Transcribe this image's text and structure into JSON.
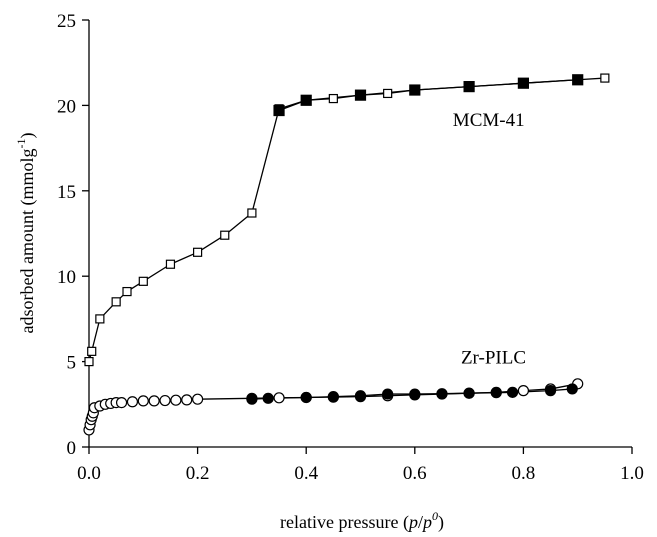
{
  "chart_data": {
    "type": "line",
    "title": "",
    "xlabel": {
      "prefix": "relative pressure (",
      "var": "p",
      "slash": "/",
      "var2": "p",
      "sup": "0",
      "suffix": ")"
    },
    "ylabel": {
      "prefix": "adsorbed amount (mmolg",
      "sup": "-1",
      "suffix": ")"
    },
    "xlim": [
      0,
      1.0
    ],
    "ylim": [
      0,
      25
    ],
    "xticks": [
      "0.0",
      "0.2",
      "0.4",
      "0.6",
      "0.8",
      "1.0"
    ],
    "yticks": [
      "0",
      "5",
      "10",
      "15",
      "20",
      "25"
    ],
    "grid": false,
    "series": [
      {
        "name": "MCM-41",
        "branch": "adsorption",
        "marker": "square-open",
        "x": [
          0.0,
          0.005,
          0.02,
          0.05,
          0.07,
          0.1,
          0.15,
          0.2,
          0.25,
          0.3,
          0.35,
          0.4,
          0.45,
          0.5,
          0.55,
          0.6,
          0.7,
          0.8,
          0.9,
          0.95
        ],
        "y": [
          5.0,
          5.6,
          7.5,
          8.5,
          9.1,
          9.7,
          10.7,
          11.4,
          12.4,
          13.7,
          19.8,
          20.3,
          20.4,
          20.6,
          20.7,
          20.9,
          21.1,
          21.3,
          21.5,
          21.6
        ]
      },
      {
        "name": "MCM-41",
        "branch": "desorption",
        "marker": "square-filled",
        "x": [
          0.9,
          0.8,
          0.7,
          0.6,
          0.5,
          0.4,
          0.35
        ],
        "y": [
          21.5,
          21.3,
          21.1,
          20.9,
          20.6,
          20.3,
          19.7
        ]
      },
      {
        "name": "Zr-PILC",
        "branch": "adsorption",
        "marker": "circle-open",
        "x": [
          0.0,
          0.002,
          0.004,
          0.006,
          0.008,
          0.01,
          0.02,
          0.03,
          0.04,
          0.05,
          0.06,
          0.08,
          0.1,
          0.12,
          0.14,
          0.16,
          0.18,
          0.2,
          0.3,
          0.35,
          0.4,
          0.45,
          0.5,
          0.55,
          0.6,
          0.65,
          0.7,
          0.75,
          0.8,
          0.85,
          0.9
        ],
        "y": [
          1.0,
          1.3,
          1.6,
          1.8,
          2.0,
          2.3,
          2.4,
          2.5,
          2.55,
          2.6,
          2.6,
          2.65,
          2.7,
          2.7,
          2.72,
          2.74,
          2.76,
          2.8,
          2.85,
          2.88,
          2.9,
          2.92,
          2.95,
          3.0,
          3.05,
          3.1,
          3.15,
          3.2,
          3.3,
          3.4,
          3.7
        ]
      },
      {
        "name": "Zr-PILC",
        "branch": "desorption",
        "marker": "circle-filled",
        "x": [
          0.89,
          0.85,
          0.78,
          0.75,
          0.7,
          0.65,
          0.6,
          0.55,
          0.5,
          0.45,
          0.4,
          0.33,
          0.3
        ],
        "y": [
          3.4,
          3.3,
          3.2,
          3.18,
          3.15,
          3.12,
          3.1,
          3.1,
          3.0,
          2.95,
          2.9,
          2.85,
          2.8
        ]
      }
    ],
    "annotations": [
      {
        "text": "MCM-41",
        "x": 0.67,
        "y": 18.8
      },
      {
        "text": "Zr-PILC",
        "x": 0.685,
        "y": 4.9
      }
    ]
  }
}
